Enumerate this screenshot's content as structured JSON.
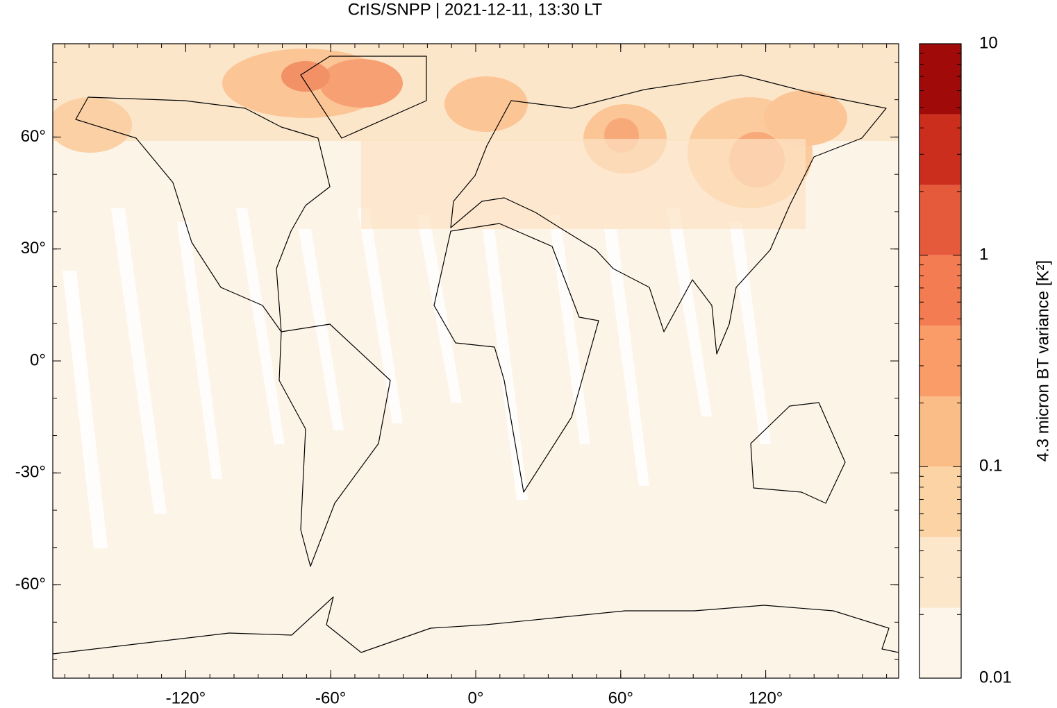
{
  "map": {
    "title": "CrIS/SNPP | 2021-12-11, 13:30 LT",
    "xlim": [
      -175,
      175
    ],
    "ylim": [
      -85,
      85
    ],
    "xticks": [
      {
        "value": -120,
        "label": "-120°"
      },
      {
        "value": -60,
        "label": "-60°"
      },
      {
        "value": 0,
        "label": "0°"
      },
      {
        "value": 60,
        "label": "60°"
      },
      {
        "value": 120,
        "label": "120°"
      }
    ],
    "yticks": [
      {
        "value": 60,
        "label": "60°"
      },
      {
        "value": 30,
        "label": "30°"
      },
      {
        "value": 0,
        "label": "0°"
      },
      {
        "value": -30,
        "label": "-30°"
      },
      {
        "value": -60,
        "label": "-60°"
      }
    ]
  },
  "colorbar": {
    "label": "4.3 micron BT variance [K²]",
    "log_scale": true,
    "lim": [
      0.01,
      10
    ],
    "ticks": [
      0.01,
      0.1,
      1,
      10
    ],
    "levels": [
      0.01,
      0.0215,
      0.0464,
      0.1,
      0.215,
      0.464,
      1,
      2.15,
      4.64,
      10
    ],
    "colors": [
      "#fef5ea",
      "#fce7cb",
      "#fcd3a5",
      "#fbbd88",
      "#f99c68",
      "#f47c52",
      "#e65a3c",
      "#cc2e1e",
      "#a00a08"
    ]
  }
}
